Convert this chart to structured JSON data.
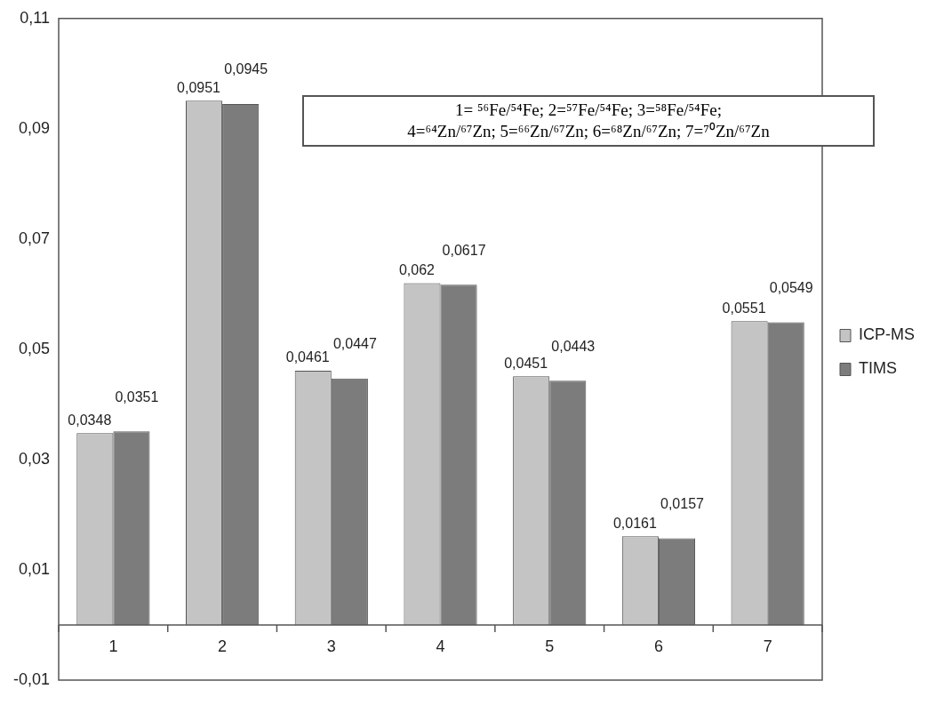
{
  "chart_data": {
    "type": "bar",
    "categories": [
      "1",
      "2",
      "3",
      "4",
      "5",
      "6",
      "7"
    ],
    "series": [
      {
        "name": "ICP-MS",
        "color": "#c4c4c4",
        "values": [
          0.0348,
          0.0951,
          0.0461,
          0.062,
          0.0451,
          0.0161,
          0.0551
        ],
        "value_labels": [
          "0,0348",
          "0,0951",
          "0,0461",
          "0,062",
          "0,0451",
          "0,0161",
          "0,0551"
        ]
      },
      {
        "name": "TIMS",
        "color": "#7c7c7c",
        "values": [
          0.0351,
          0.0945,
          0.0447,
          0.0617,
          0.0443,
          0.0157,
          0.0549
        ],
        "value_labels": [
          "0,0351",
          "0,0945",
          "0,0447",
          "0,0617",
          "0,0443",
          "0,0157",
          "0,0549"
        ]
      }
    ],
    "ylim": [
      -0.01,
      0.11
    ],
    "yticks": [
      {
        "value": -0.01,
        "label": "-0,01"
      },
      {
        "value": 0.01,
        "label": "0,01"
      },
      {
        "value": 0.03,
        "label": "0,03"
      },
      {
        "value": 0.05,
        "label": "0,05"
      },
      {
        "value": 0.07,
        "label": "0,07"
      },
      {
        "value": 0.09,
        "label": "0,09"
      },
      {
        "value": 0.11,
        "label": "0,11"
      }
    ],
    "legend": "right",
    "annotations": [
      "1= ⁵⁶Fe/⁵⁴Fe; 2=⁵⁷Fe/⁵⁴Fe; 3=⁵⁸Fe/⁵⁴Fe;",
      "4=⁶⁴Zn/⁶⁷Zn; 5=⁶⁶Zn/⁶⁷Zn; 6=⁶⁸Zn/⁶⁷Zn; 7=⁷⁰Zn/⁶⁷Zn"
    ]
  }
}
